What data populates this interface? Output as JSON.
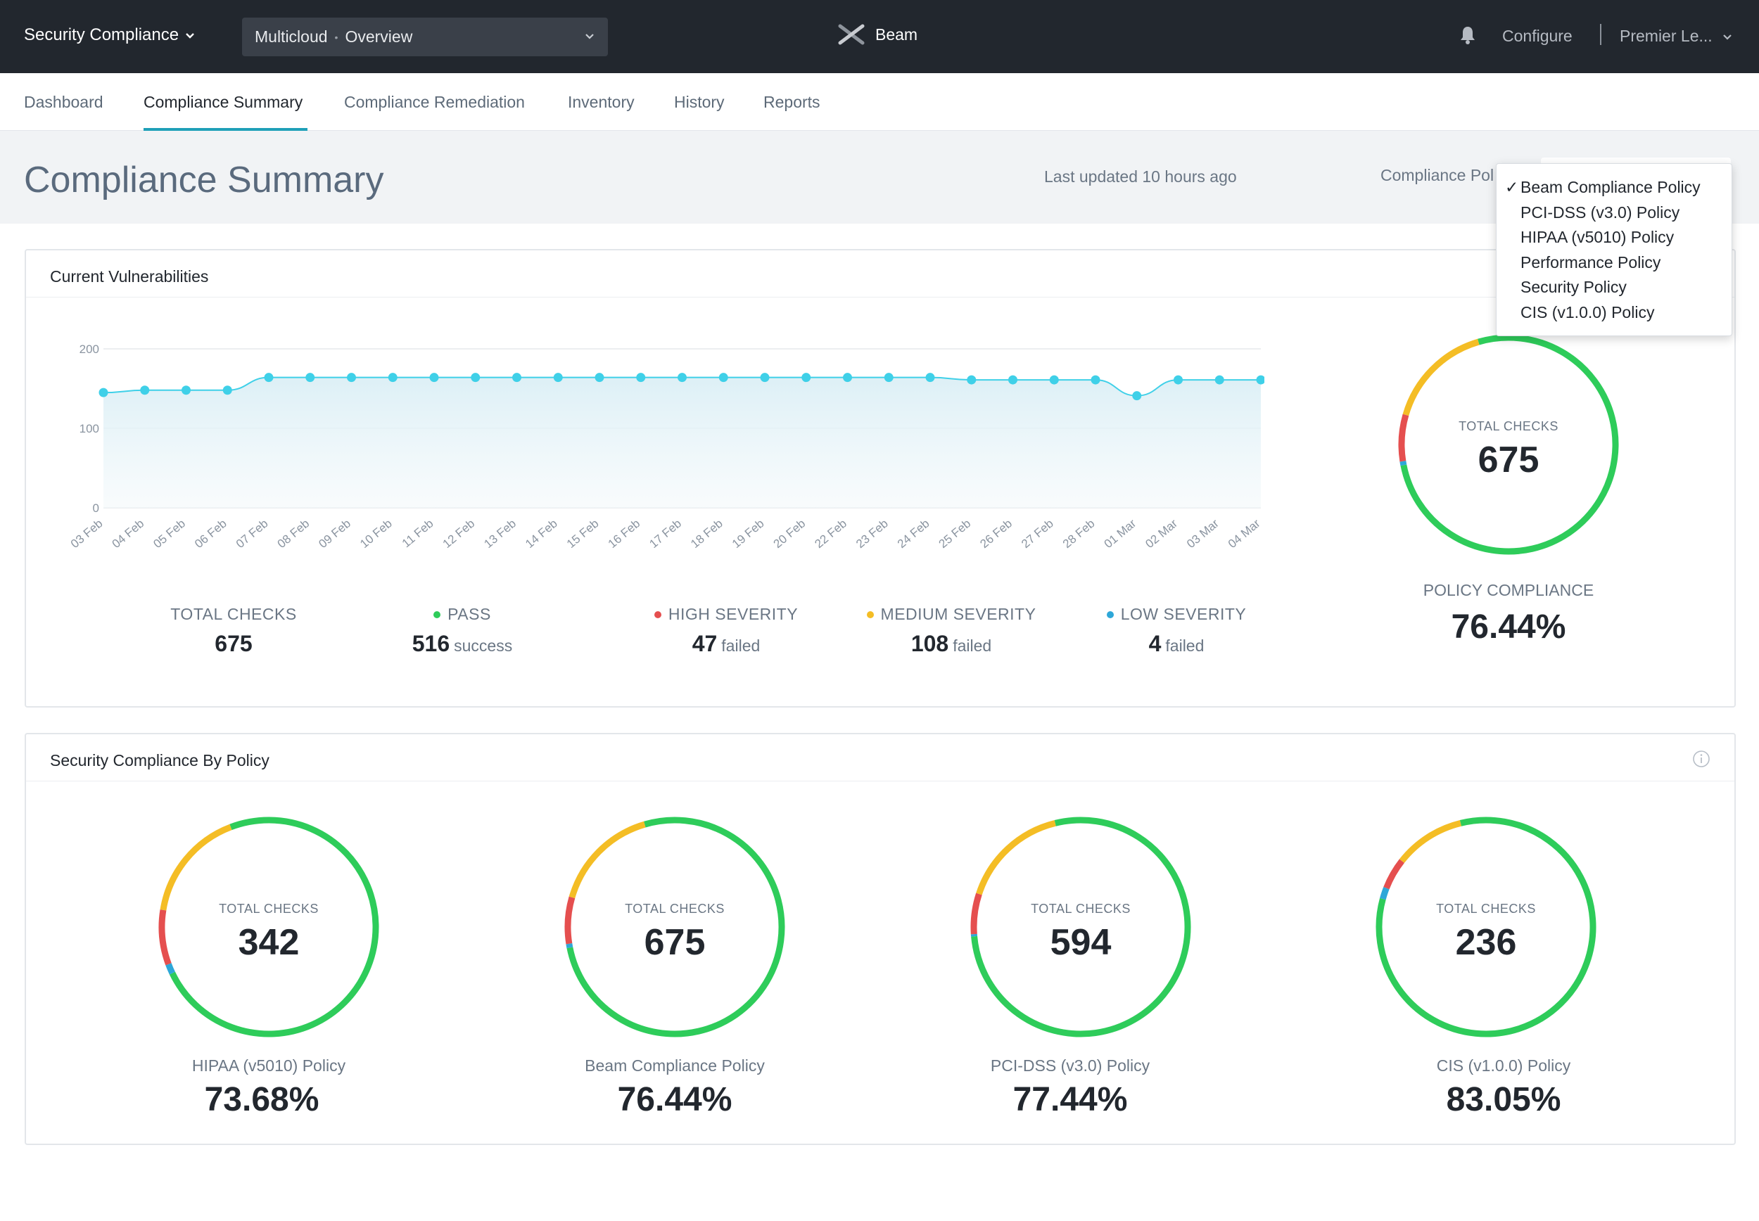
{
  "topbar": {
    "app_name": "Security Compliance",
    "context": {
      "part1": "Multicloud",
      "separator": "•",
      "part2": "Overview"
    },
    "brand": "Beam",
    "configure": "Configure",
    "user": "Premier Le..."
  },
  "tabs": [
    {
      "label": "Dashboard"
    },
    {
      "label": "Compliance Summary"
    },
    {
      "label": "Compliance Remediation"
    },
    {
      "label": "Inventory"
    },
    {
      "label": "History"
    },
    {
      "label": "Reports"
    }
  ],
  "header": {
    "title": "Compliance Summary",
    "last_updated": "Last updated 10 hours ago",
    "policy_label": "Compliance Pol"
  },
  "policy_dropdown": {
    "options": [
      {
        "label": "Beam Compliance Policy",
        "checked": true
      },
      {
        "label": "PCI-DSS (v3.0) Policy",
        "checked": false
      },
      {
        "label": "HIPAA (v5010) Policy",
        "checked": false
      },
      {
        "label": "Performance Policy",
        "checked": false
      },
      {
        "label": "Security Policy",
        "checked": false
      },
      {
        "label": "CIS (v1.0.0) Policy",
        "checked": false
      }
    ],
    "check_glyph": "✓"
  },
  "vulnerabilities": {
    "title": "Current Vulnerabilities",
    "stats": {
      "total": {
        "label": "TOTAL CHECKS",
        "value": "675"
      },
      "pass": {
        "label": "PASS",
        "value": "516",
        "suffix": "success",
        "color": "#2ecc5a"
      },
      "high": {
        "label": "HIGH SEVERITY",
        "value": "47",
        "suffix": "failed",
        "color": "#e54f4f"
      },
      "medium": {
        "label": "MEDIUM SEVERITY",
        "value": "108",
        "suffix": "failed",
        "color": "#f4bd25"
      },
      "low": {
        "label": "LOW SEVERITY",
        "value": "4",
        "suffix": "failed",
        "color": "#2ea7d8"
      }
    },
    "donut": {
      "inner_label": "TOTAL CHECKS",
      "inner_value": "675",
      "caption": "POLICY COMPLIANCE",
      "percent": "76.44%",
      "segments": {
        "pass": 516,
        "low": 4,
        "high": 47,
        "medium": 108
      }
    }
  },
  "chart_data": {
    "type": "area",
    "categories": [
      "03 Feb",
      "04 Feb",
      "05 Feb",
      "06 Feb",
      "07 Feb",
      "08 Feb",
      "09 Feb",
      "10 Feb",
      "11 Feb",
      "12 Feb",
      "13 Feb",
      "14 Feb",
      "15 Feb",
      "16 Feb",
      "17 Feb",
      "18 Feb",
      "19 Feb",
      "20 Feb",
      "22 Feb",
      "23 Feb",
      "24 Feb",
      "25 Feb",
      "26 Feb",
      "27 Feb",
      "28 Feb",
      "01 Mar",
      "02 Mar",
      "03 Mar",
      "04 Mar"
    ],
    "values": [
      145,
      148,
      148,
      148,
      164,
      164,
      164,
      164,
      164,
      164,
      164,
      164,
      164,
      164,
      164,
      164,
      164,
      164,
      164,
      164,
      164,
      161,
      161,
      161,
      161,
      141,
      161,
      161,
      161
    ],
    "yticks": [
      0,
      100,
      200
    ],
    "ylim": [
      0,
      200
    ],
    "color": "#3fd0e8"
  },
  "by_policy": {
    "title": "Security Compliance By Policy",
    "items": [
      {
        "inner_label": "TOTAL CHECKS",
        "inner_value": "342",
        "name": "HIPAA (v5010) Policy",
        "percent": "73.68%",
        "segments": {
          "pass": 252,
          "low": 5,
          "high": 28,
          "medium": 57
        }
      },
      {
        "inner_label": "TOTAL CHECKS",
        "inner_value": "675",
        "name": "Beam Compliance Policy",
        "percent": "76.44%",
        "segments": {
          "pass": 516,
          "low": 4,
          "high": 47,
          "medium": 108
        }
      },
      {
        "inner_label": "TOTAL CHECKS",
        "inner_value": "594",
        "name": "PCI-DSS (v3.0) Policy",
        "percent": "77.44%",
        "segments": {
          "pass": 460,
          "low": 2,
          "high": 36,
          "medium": 96
        }
      },
      {
        "inner_label": "TOTAL CHECKS",
        "inner_value": "236",
        "name": "CIS (v1.0.0) Policy",
        "percent": "83.05%",
        "segments": {
          "pass": 196,
          "low": 4,
          "high": 11,
          "medium": 25
        }
      }
    ]
  },
  "colors": {
    "pass": "#2ecc5a",
    "high": "#e54f4f",
    "medium": "#f4bd25",
    "low": "#2ea7d8",
    "topbar": "#22272e",
    "accent": "#1fa0b8"
  }
}
